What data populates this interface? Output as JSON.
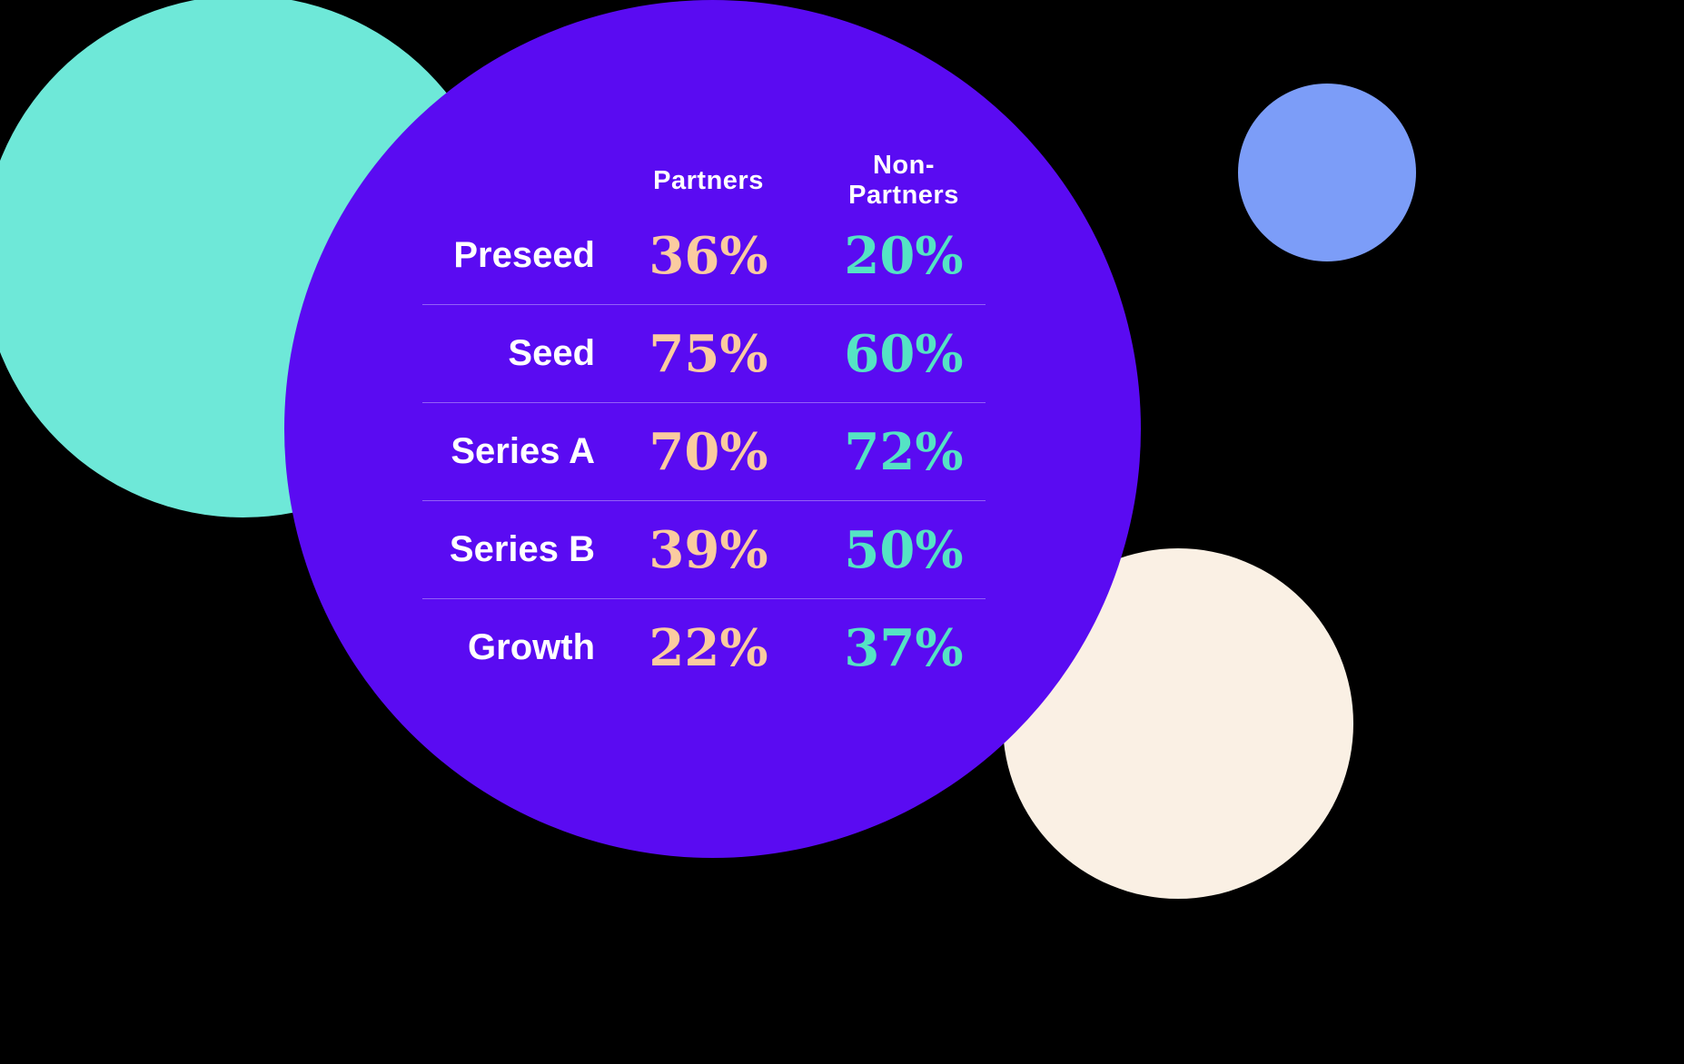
{
  "chart_data": {
    "type": "table",
    "title": "",
    "columns": [
      "Partners",
      "Non-Partners"
    ],
    "rows": [
      {
        "label": "Preseed",
        "partners": "36%",
        "non_partners": "20%"
      },
      {
        "label": "Seed",
        "partners": "75%",
        "non_partners": "60%"
      },
      {
        "label": "Series A",
        "partners": "70%",
        "non_partners": "72%"
      },
      {
        "label": "Series B",
        "partners": "39%",
        "non_partners": "50%"
      },
      {
        "label": "Growth",
        "partners": "22%",
        "non_partners": "37%"
      }
    ]
  },
  "colors": {
    "background": "#000000",
    "purple_circle": "#5A0BF2",
    "teal_circle": "#6EE8D8",
    "blue_circle": "#7C9DF8",
    "cream_circle": "#FAF0E4",
    "partners_value": "#FBCBA0",
    "non_partners_value": "#55E3C4",
    "label_text": "#FFFFFF",
    "divider": "rgba(255,255,255,0.35)"
  }
}
